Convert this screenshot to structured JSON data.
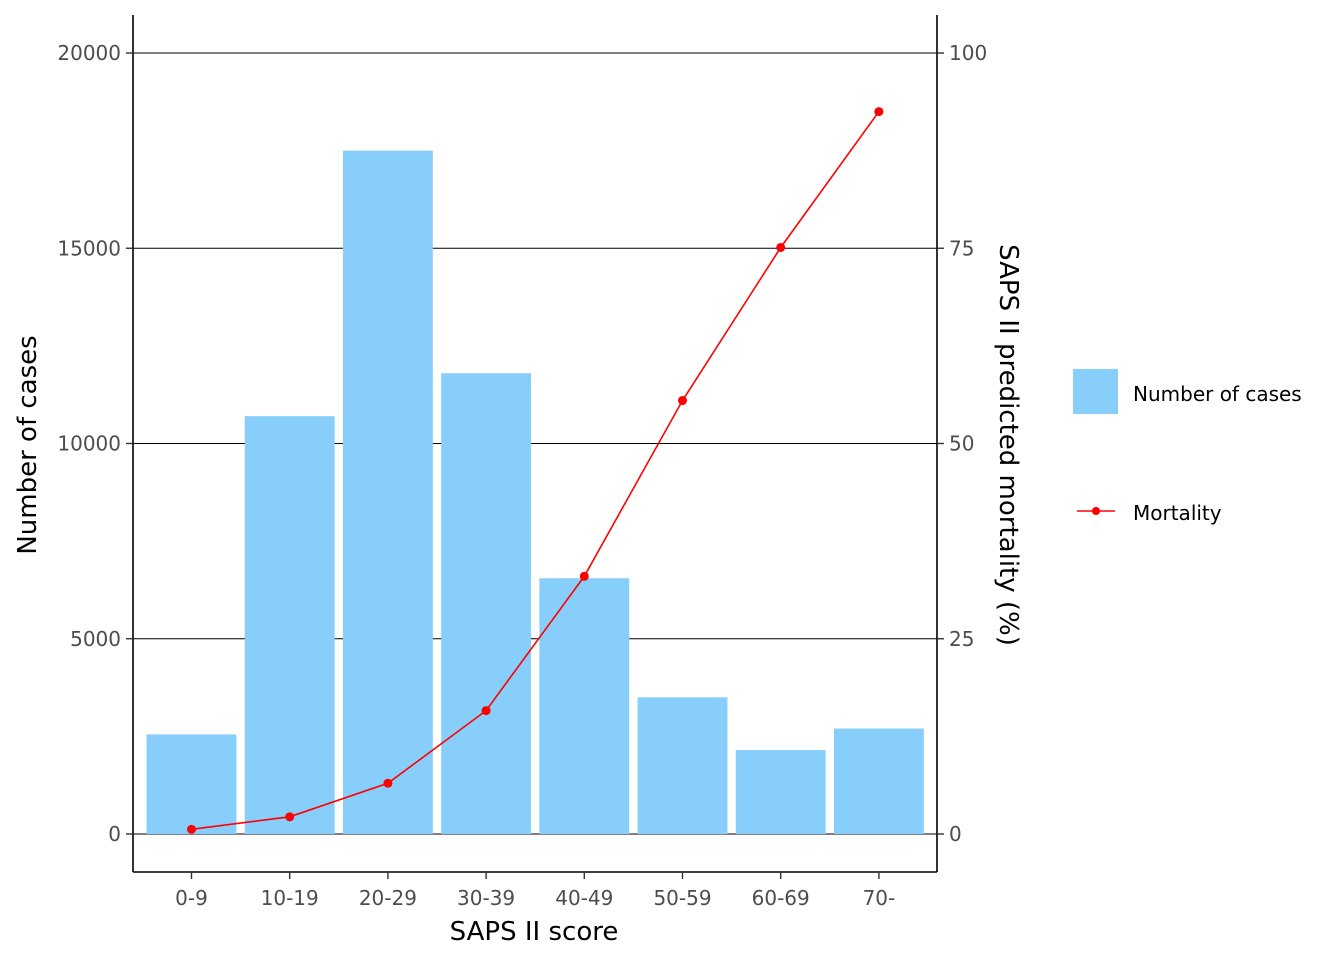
{
  "chart_data": {
    "type": "bar",
    "title": "",
    "xlabel": "SAPS II score",
    "ylabel": "Number of cases",
    "y2label": "SAPS II predicted mortality (%)",
    "categories": [
      "0-9",
      "10-19",
      "20-29",
      "30-39",
      "40-49",
      "50-59",
      "60-69",
      "70-"
    ],
    "ylim": [
      0,
      20000
    ],
    "y_ticks": [
      0,
      5000,
      10000,
      15000,
      20000
    ],
    "y_tick_labels": [
      "0",
      "5000",
      "10000",
      "15000",
      "20000"
    ],
    "y2lim": [
      0,
      100
    ],
    "y2_ticks": [
      0,
      25,
      50,
      75,
      100
    ],
    "y2_tick_labels": [
      "0",
      "25",
      "50",
      "75",
      "100"
    ],
    "grid": "horizontal major",
    "legend_position": "right",
    "series": [
      {
        "name": "Number of cases",
        "type": "bar",
        "axis": "left",
        "color": "#87CEFA",
        "values": [
          2550,
          10700,
          17500,
          11800,
          6550,
          3500,
          2150,
          2700
        ]
      },
      {
        "name": "Mortality",
        "type": "line",
        "axis": "right",
        "color": "#FF0000",
        "values": [
          0.6,
          2.2,
          6.5,
          15.8,
          33.0,
          55.5,
          75.1,
          92.5
        ]
      }
    ]
  }
}
